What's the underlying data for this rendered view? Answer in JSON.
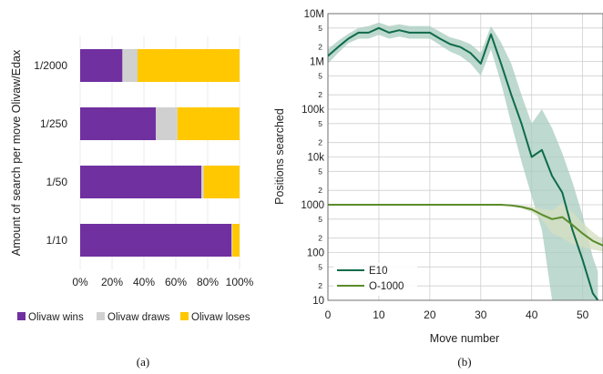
{
  "chart_data": [
    {
      "type": "bar",
      "stacked": true,
      "orientation": "horizontal",
      "panel_label": "(a)",
      "ylabel": "Amount of search per move Olivaw/Edax",
      "categories": [
        "1/2000",
        "1/250",
        "1/50",
        "1/10"
      ],
      "xlim": [
        0,
        100
      ],
      "x_tick_labels": [
        "0%",
        "20%",
        "40%",
        "60%",
        "80%",
        "100%"
      ],
      "series": [
        {
          "name": "Olivaw wins",
          "color": "#7030a0",
          "values": [
            26.5,
            47.5,
            76,
            95
          ]
        },
        {
          "name": "Olivaw draws",
          "color": "#d0d0d0",
          "values": [
            9.5,
            13.5,
            1.5,
            0.5
          ]
        },
        {
          "name": "Olivaw loses",
          "color": "#ffc800",
          "values": [
            64,
            39,
            22.5,
            4.5
          ]
        }
      ],
      "legend_position": "bottom"
    },
    {
      "type": "line",
      "panel_label": "(b)",
      "xlabel": "Move number",
      "ylabel": "Positions searched",
      "y_scale": "log",
      "xlim": [
        0,
        54
      ],
      "ylim": [
        10,
        10000000
      ],
      "x_ticks": [
        0,
        10,
        20,
        30,
        40,
        50
      ],
      "y_major_ticks": [
        {
          "value": 10,
          "label": "10"
        },
        {
          "value": 100,
          "label": "100"
        },
        {
          "value": 1000,
          "label": "1000"
        },
        {
          "value": 10000,
          "label": "10k"
        },
        {
          "value": 100000,
          "label": "100k"
        },
        {
          "value": 1000000,
          "label": "1M"
        },
        {
          "value": 10000000,
          "label": "10M"
        }
      ],
      "y_minor_ticks": [
        {
          "value": 20,
          "label": "2"
        },
        {
          "value": 50,
          "label": "5"
        },
        {
          "value": 200,
          "label": "2"
        },
        {
          "value": 500,
          "label": "5"
        },
        {
          "value": 2000,
          "label": "2"
        },
        {
          "value": 5000,
          "label": "5"
        },
        {
          "value": 20000,
          "label": "2"
        },
        {
          "value": 50000,
          "label": "5"
        },
        {
          "value": 200000,
          "label": "2"
        },
        {
          "value": 500000,
          "label": "5"
        },
        {
          "value": 2000000,
          "label": "2"
        },
        {
          "value": 5000000,
          "label": "5"
        }
      ],
      "grid": true,
      "legend_position": "bottom-left",
      "series": [
        {
          "name": "E10",
          "color": "#0e6b4a",
          "band_color": "#a8ccbf",
          "x": [
            0,
            2,
            4,
            6,
            8,
            10,
            12,
            14,
            16,
            18,
            20,
            22,
            24,
            26,
            28,
            30,
            32,
            34,
            36,
            38,
            40,
            42,
            44,
            46,
            48,
            50,
            52,
            53
          ],
          "y": [
            1300000,
            2000000,
            3000000,
            4000000,
            4000000,
            5000000,
            4000000,
            4500000,
            4000000,
            4000000,
            4000000,
            3000000,
            2300000,
            2000000,
            1500000,
            900000,
            3700000,
            900000,
            200000,
            50000,
            10000,
            14000,
            4000,
            1800,
            300,
            70,
            14,
            9
          ],
          "band_low": [
            900000,
            1500000,
            2400000,
            3000000,
            3000000,
            3600000,
            3000000,
            3300000,
            3000000,
            3000000,
            3000000,
            2200000,
            1600000,
            1300000,
            900000,
            500000,
            1800000,
            350000,
            50000,
            8000,
            1500,
            300,
            10,
            10,
            10,
            10,
            10,
            10
          ],
          "band_high": [
            1800000,
            2700000,
            3800000,
            5000000,
            5500000,
            6500000,
            5500000,
            6000000,
            5500000,
            5500000,
            5500000,
            4200000,
            3200000,
            2800000,
            2300000,
            1500000,
            5500000,
            2500000,
            900000,
            200000,
            50000,
            100000,
            40000,
            12000,
            3000,
            600,
            80,
            40
          ]
        },
        {
          "name": "O-1000",
          "color": "#5a8c2a",
          "band_color": "#d4dfc2",
          "x": [
            0,
            5,
            10,
            15,
            20,
            25,
            30,
            34,
            36,
            38,
            40,
            42,
            44,
            46,
            48,
            50,
            52,
            54
          ],
          "y": [
            1000,
            1000,
            1000,
            1000,
            1000,
            1000,
            1000,
            1000,
            970,
            900,
            800,
            620,
            500,
            550,
            380,
            250,
            175,
            140
          ],
          "band_low": [
            1000,
            1000,
            1000,
            1000,
            1000,
            1000,
            1000,
            1000,
            950,
            850,
            700,
            480,
            250,
            200,
            150,
            130,
            115,
            105
          ],
          "band_high": [
            1000,
            1000,
            1000,
            1000,
            1000,
            1000,
            1000,
            1000,
            990,
            960,
            920,
            820,
            760,
            1100,
            700,
            420,
            270,
            185
          ]
        }
      ]
    }
  ]
}
